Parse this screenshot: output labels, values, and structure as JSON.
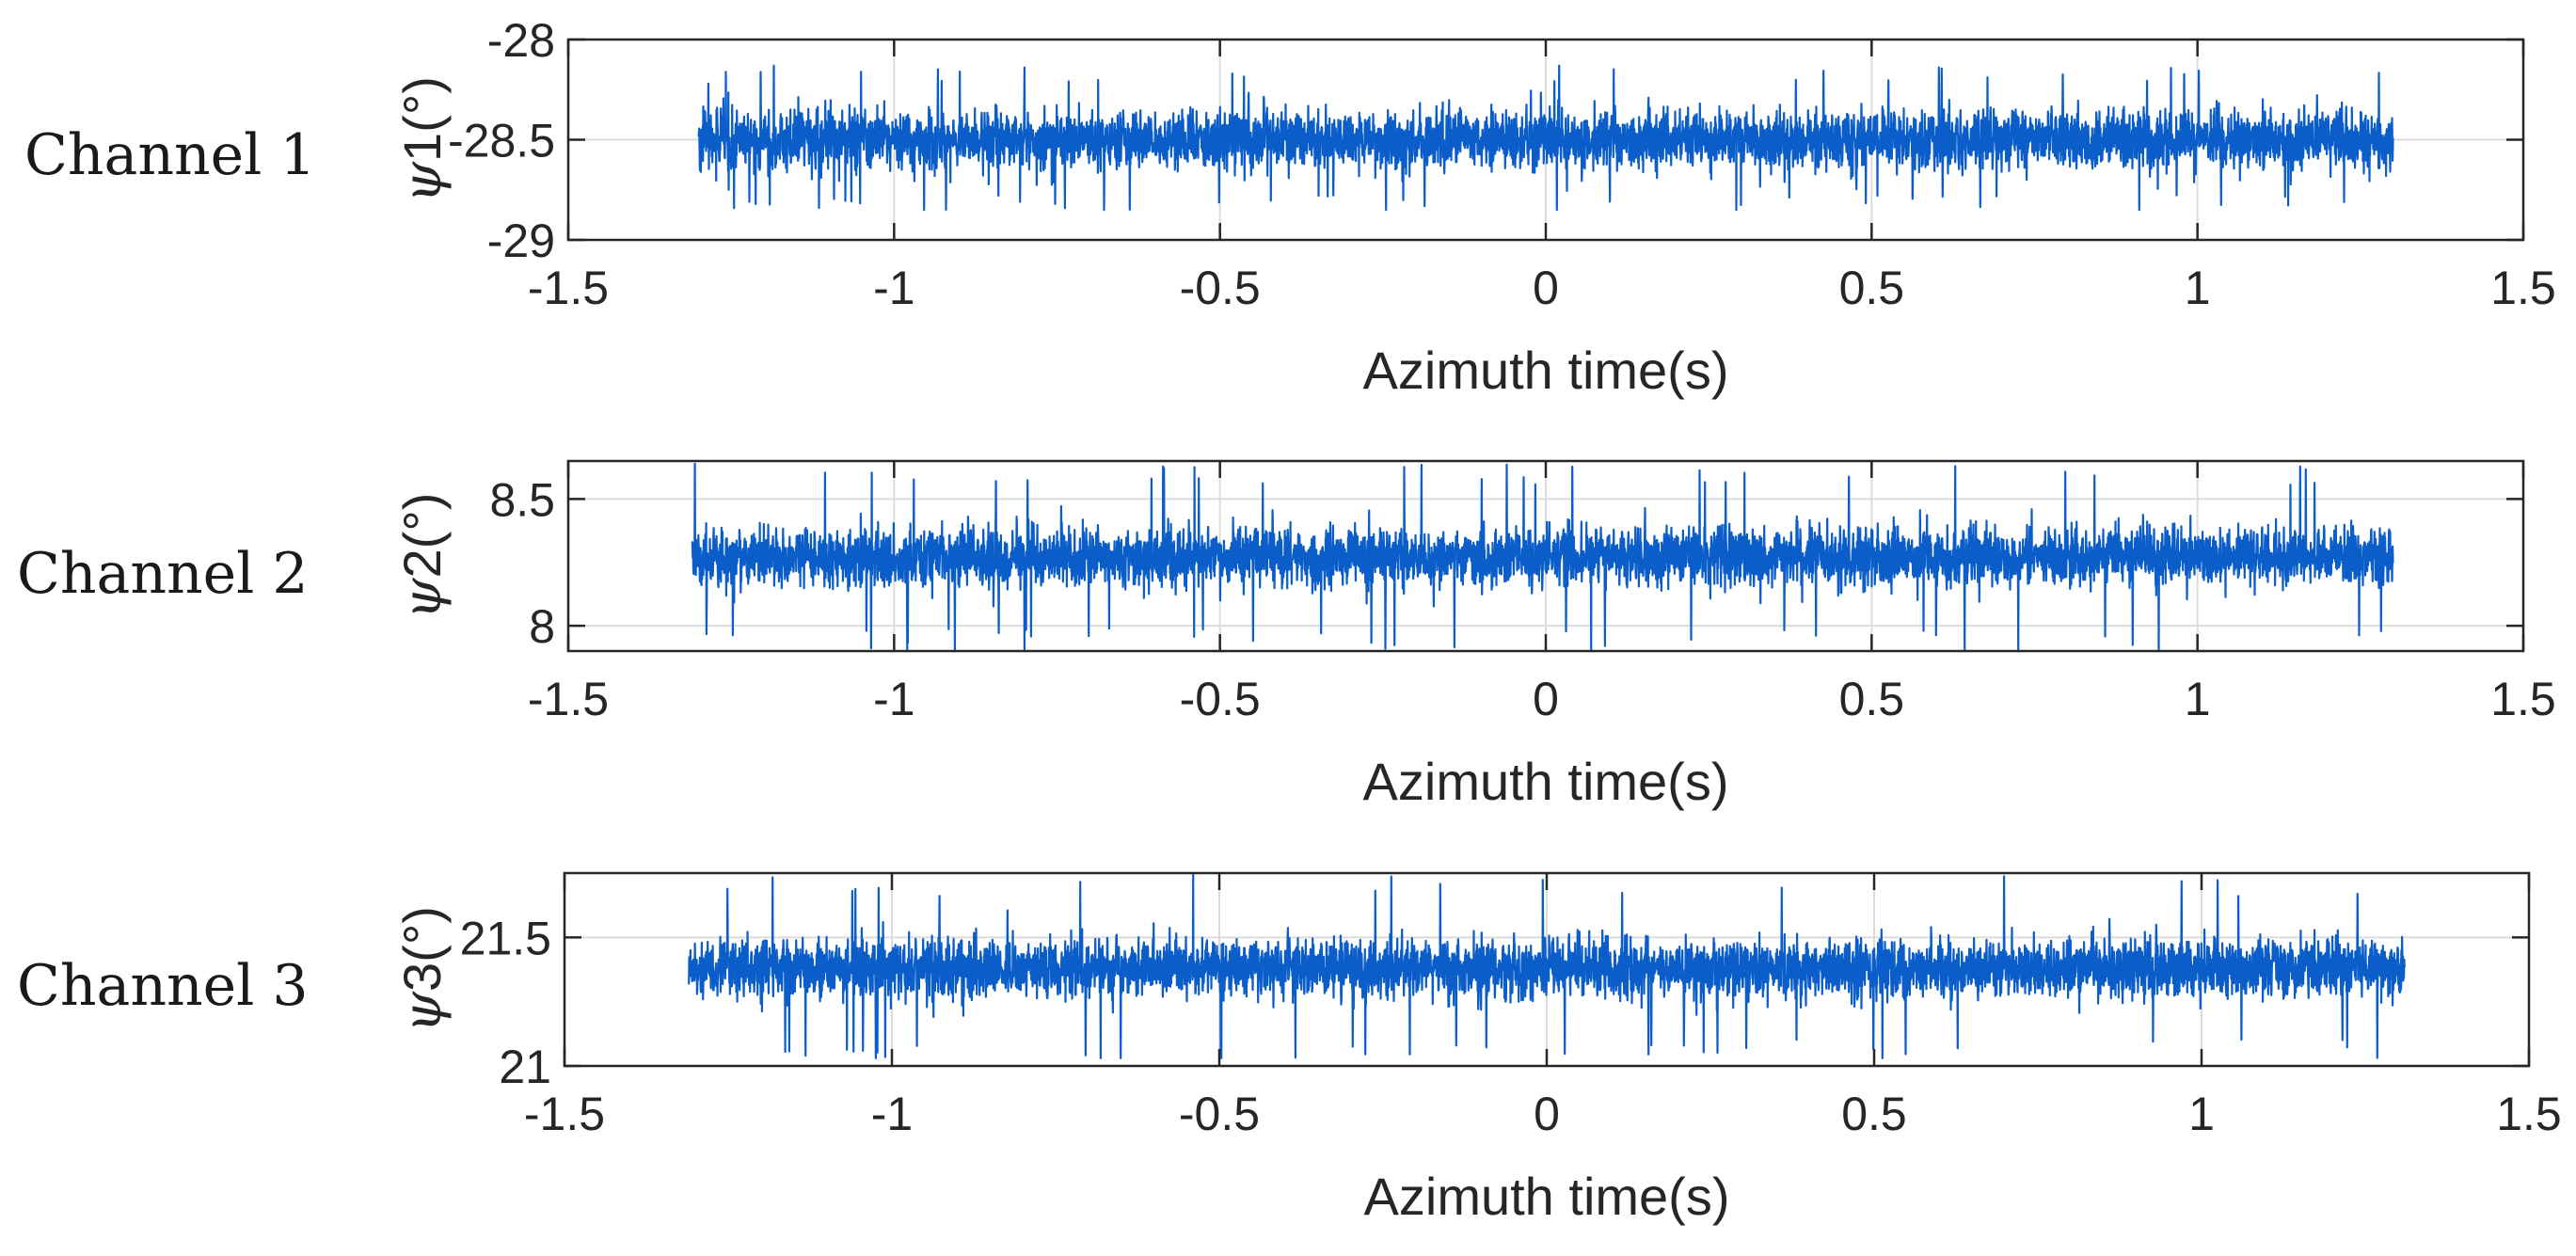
{
  "chart_data": [
    {
      "type": "line",
      "row_label": "Channel 1",
      "ylabel": {
        "symbol": "ψ",
        "text": "1(°)"
      },
      "xlabel": "Azimuth time(s)",
      "xlim": [
        -1.5,
        1.5
      ],
      "ylim": [
        -29,
        -28
      ],
      "xticks": [
        -1.5,
        -1,
        -0.5,
        0,
        0.5,
        1,
        1.5
      ],
      "xtick_labels": [
        "-1.5",
        "-1",
        "-0.5",
        "0",
        "0.5",
        "1",
        "1.5"
      ],
      "yticks": [
        -29,
        -28.5,
        -28
      ],
      "ytick_labels": [
        "-29",
        "-28.5",
        "-28"
      ],
      "grid": true,
      "color": "#0b5ec9",
      "series": [
        {
          "x_start": -1.3,
          "x_end": 1.3,
          "mean": -28.5,
          "spread": 0.13,
          "min": -28.85,
          "max": -28.13
        }
      ]
    },
    {
      "type": "line",
      "row_label": "Channel 2",
      "ylabel": {
        "symbol": "ψ",
        "text": "2(°)"
      },
      "xlabel": "Azimuth time(s)",
      "xlim": [
        -1.5,
        1.5
      ],
      "ylim": [
        7.9,
        8.65
      ],
      "xticks": [
        -1.5,
        -1,
        -0.5,
        0,
        0.5,
        1,
        1.5
      ],
      "xtick_labels": [
        "-1.5",
        "-1",
        "-0.5",
        "0",
        "0.5",
        "1",
        "1.5"
      ],
      "yticks": [
        8,
        8.5
      ],
      "ytick_labels": [
        "8",
        "8.5"
      ],
      "grid": true,
      "color": "#0b5ec9",
      "series": [
        {
          "x_start": -1.31,
          "x_end": 1.3,
          "mean": 8.27,
          "spread": 0.1,
          "min": 7.9,
          "max": 8.64
        }
      ]
    },
    {
      "type": "line",
      "row_label": "Channel 3",
      "ylabel": {
        "symbol": "ψ",
        "text": "3(°)"
      },
      "xlabel": "Azimuth time(s)",
      "xlim": [
        -1.5,
        1.5
      ],
      "ylim": [
        21,
        21.75
      ],
      "xticks": [
        -1.5,
        -1,
        -0.5,
        0,
        0.5,
        1,
        1.5
      ],
      "xtick_labels": [
        "-1.5",
        "-1",
        "-0.5",
        "0",
        "0.5",
        "1",
        "1.5"
      ],
      "yticks": [
        21,
        21.5
      ],
      "ytick_labels": [
        "21",
        "21.5"
      ],
      "grid": true,
      "color": "#0b5ec9",
      "series": [
        {
          "x_start": -1.31,
          "x_end": 1.31,
          "mean": 21.38,
          "spread": 0.1,
          "min": 21.03,
          "max": 21.75
        }
      ]
    }
  ]
}
